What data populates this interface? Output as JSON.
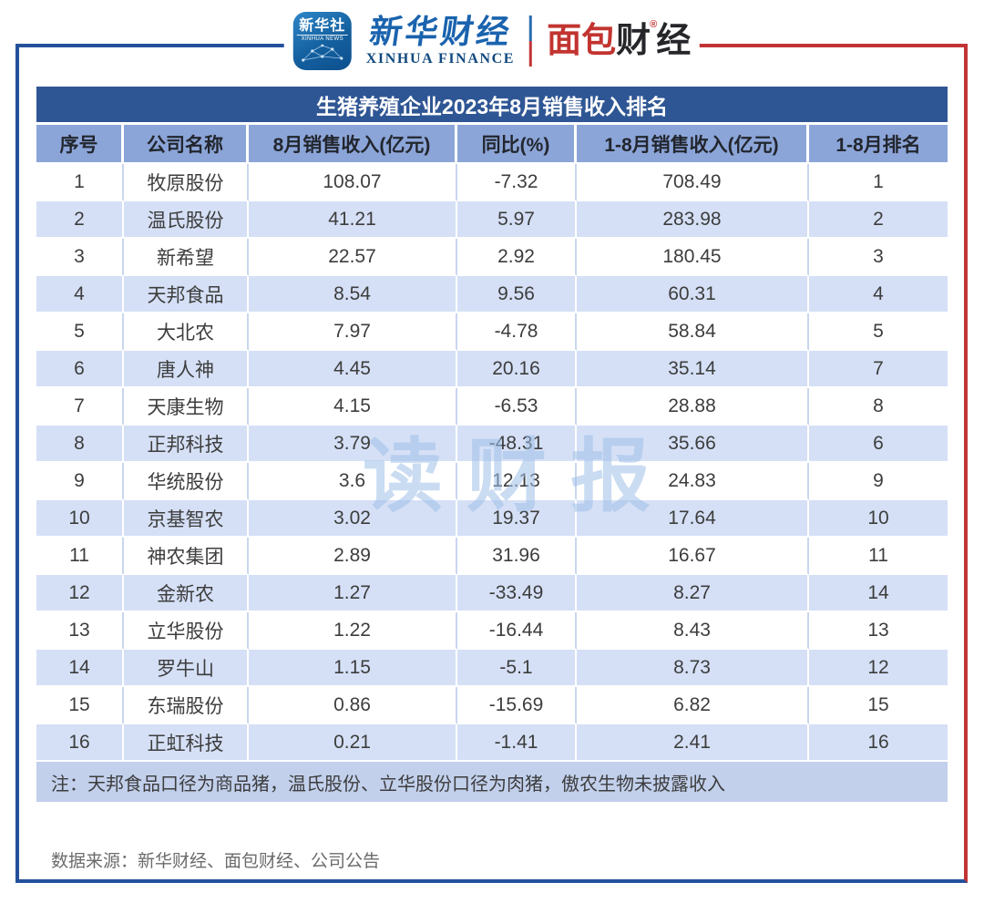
{
  "header": {
    "xinhua_news_badge": {
      "title": "新华社",
      "subtitle": "XINHUA NEWS"
    },
    "xinhua_finance": {
      "cn": "新华财经",
      "en": "XINHUA FINANCE"
    },
    "mianbao": {
      "red_part": "面包",
      "dark_part_1": "财",
      "reg_mark": "®",
      "dark_part_2": "经"
    }
  },
  "chart_data": {
    "type": "table",
    "title": "生猪养殖企业2023年8月销售收入排名",
    "columns": [
      "序号",
      "公司名称",
      "8月销售收入(亿元)",
      "同比(%)",
      "1-8月销售收入(亿元)",
      "1-8月排名"
    ],
    "rows": [
      [
        "1",
        "牧原股份",
        "108.07",
        "-7.32",
        "708.49",
        "1"
      ],
      [
        "2",
        "温氏股份",
        "41.21",
        "5.97",
        "283.98",
        "2"
      ],
      [
        "3",
        "新希望",
        "22.57",
        "2.92",
        "180.45",
        "3"
      ],
      [
        "4",
        "天邦食品",
        "8.54",
        "9.56",
        "60.31",
        "4"
      ],
      [
        "5",
        "大北农",
        "7.97",
        "-4.78",
        "58.84",
        "5"
      ],
      [
        "6",
        "唐人神",
        "4.45",
        "20.16",
        "35.14",
        "7"
      ],
      [
        "7",
        "天康生物",
        "4.15",
        "-6.53",
        "28.88",
        "8"
      ],
      [
        "8",
        "正邦科技",
        "3.79",
        "-48.31",
        "35.66",
        "6"
      ],
      [
        "9",
        "华统股份",
        "3.6",
        "12.13",
        "24.83",
        "9"
      ],
      [
        "10",
        "京基智农",
        "3.02",
        "19.37",
        "17.64",
        "10"
      ],
      [
        "11",
        "神农集团",
        "2.89",
        "31.96",
        "16.67",
        "11"
      ],
      [
        "12",
        "金新农",
        "1.27",
        "-33.49",
        "8.27",
        "14"
      ],
      [
        "13",
        "立华股份",
        "1.22",
        "-16.44",
        "8.43",
        "13"
      ],
      [
        "14",
        "罗牛山",
        "1.15",
        "-5.1",
        "8.73",
        "12"
      ],
      [
        "15",
        "东瑞股份",
        "0.86",
        "-15.69",
        "6.82",
        "15"
      ],
      [
        "16",
        "正虹科技",
        "0.21",
        "-1.41",
        "2.41",
        "16"
      ]
    ],
    "note": "注：天邦食品口径为商品猪，温氏股份、立华股份口径为肉猪，傲农生物未披露收入"
  },
  "footer": {
    "source": "数据来源：新华财经、面包财经、公司公告"
  },
  "watermark": {
    "text": "读财报"
  },
  "colors": {
    "frame_blue": "#24519B",
    "frame_red": "#C23434",
    "title_bg": "#2F5694",
    "header_bg": "#8CA5D8",
    "row_alt_bg": "#D5E0F6",
    "note_bg": "#C2D0EC",
    "watermark_blue": "#9EC0E8",
    "logo_blue": "#1A63AE",
    "logo_red": "#C23430"
  }
}
